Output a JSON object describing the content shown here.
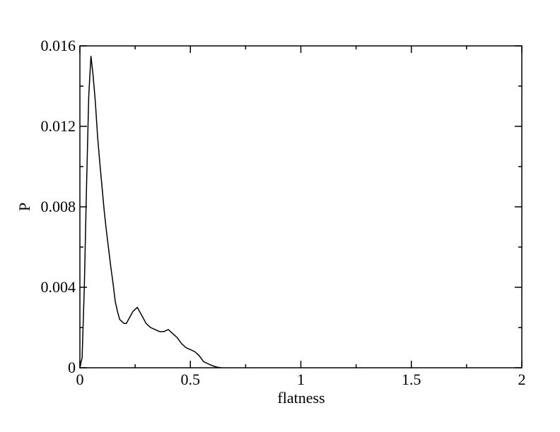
{
  "chart_data": {
    "type": "line",
    "xlabel": "flatness",
    "ylabel": "P",
    "xlim": [
      0,
      2
    ],
    "ylim": [
      0,
      0.016
    ],
    "xticks": [
      0,
      0.5,
      1,
      1.5,
      2
    ],
    "yticks": [
      0,
      0.004,
      0.008,
      0.012,
      0.016
    ],
    "xminorticks": [
      0.25,
      0.75,
      1.25,
      1.75
    ],
    "yminorticks": [
      0.002,
      0.006,
      0.01,
      0.014
    ],
    "series": [
      {
        "color": "#000000",
        "x": [
          0,
          0.01,
          0.02,
          0.03,
          0.04,
          0.05,
          0.06,
          0.07,
          0.08,
          0.09,
          0.1,
          0.11,
          0.12,
          0.13,
          0.14,
          0.15,
          0.16,
          0.17,
          0.18,
          0.19,
          0.2,
          0.21,
          0.22,
          0.23,
          0.24,
          0.25,
          0.26,
          0.27,
          0.28,
          0.29,
          0.3,
          0.32,
          0.34,
          0.36,
          0.38,
          0.4,
          0.42,
          0.44,
          0.46,
          0.48,
          0.5,
          0.52,
          0.54,
          0.56,
          0.58,
          0.6,
          0.62,
          0.64
        ],
        "values": [
          0,
          0.0005,
          0.004,
          0.009,
          0.0135,
          0.0155,
          0.0145,
          0.0132,
          0.0115,
          0.0102,
          0.009,
          0.0078,
          0.0068,
          0.0059,
          0.005,
          0.0042,
          0.0033,
          0.0028,
          0.0024,
          0.0023,
          0.0022,
          0.0022,
          0.0024,
          0.0026,
          0.0028,
          0.0029,
          0.003,
          0.0028,
          0.0026,
          0.0024,
          0.0022,
          0.002,
          0.0019,
          0.0018,
          0.0018,
          0.0019,
          0.0017,
          0.0015,
          0.0012,
          0.001,
          0.0009,
          0.0008,
          0.0006,
          0.0003,
          0.0002,
          0.0001,
          3e-05,
          0
        ]
      }
    ]
  }
}
